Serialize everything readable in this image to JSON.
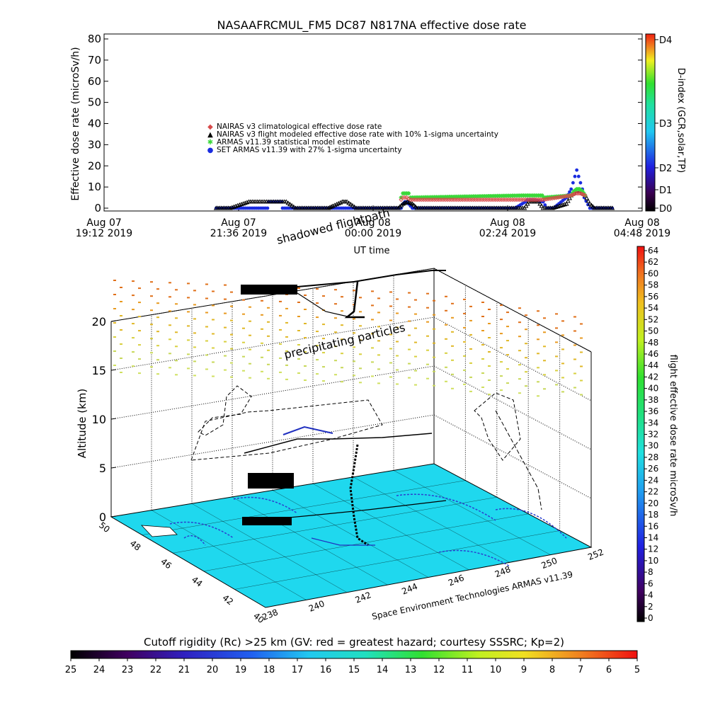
{
  "title": "NASAAFRCMUL_FM5 DC87 N817NA effective dose rate",
  "colors": {
    "nairas_clim": "#d84a4a",
    "nairas_flight": "#000000",
    "armas_stat": "#3ad83a",
    "set_armas": "#1a2ce0",
    "ground": "#1fd8ee",
    "track": "#000000"
  },
  "chart_data": [
    {
      "type": "line",
      "title": "NASAAFRCMUL_FM5 DC87 N817NA effective dose rate",
      "xlabel": "UT time",
      "ylabel": "Effective dose rate (microSv/h)",
      "ylim": [
        0,
        80
      ],
      "yticks": [
        "0",
        "10",
        "20",
        "30",
        "40",
        "50",
        "60",
        "70",
        "80"
      ],
      "xlim_minutes": [
        0,
        576
      ],
      "xticks": [
        {
          "line1": "Aug 07",
          "line2": "19:12 2019"
        },
        {
          "line1": "Aug 07",
          "line2": "21:36 2019"
        },
        {
          "line1": "Aug 08",
          "line2": "00:00 2019"
        },
        {
          "line1": "Aug 08",
          "line2": "02:24 2019"
        },
        {
          "line1": "Aug 08",
          "line2": "04:48 2019"
        }
      ],
      "legend": [
        {
          "symbol": "◆",
          "color_key": "nairas_clim",
          "label": "NAIRAS v3 climatological effective dose rate"
        },
        {
          "symbol": "▲",
          "color_key": "nairas_flight",
          "label": "NAIRAS v3 flight modeled effective dose rate with 10% 1-sigma uncertainty"
        },
        {
          "symbol": "✱",
          "color_key": "armas_stat",
          "label": "ARMAS v11.39 statistical model estimate"
        },
        {
          "symbol": "●",
          "color_key": "set_armas",
          "label": "SET ARMAS v11.39 with 27% 1-sigma uncertainty"
        }
      ],
      "series": [
        {
          "name": "SET ARMAS v11.39 with 27% 1-sigma uncertainty",
          "color_key": "set_armas",
          "x": [
            120,
            175,
            176,
            178,
            180,
            190,
            191,
            300,
            318,
            320,
            322,
            324,
            326,
            330,
            440,
            451,
            453,
            455,
            460,
            470,
            474,
            481,
            495,
            500,
            502,
            504,
            506,
            508,
            510,
            512,
            514,
            520,
            526,
            544
          ],
          "y": [
            0,
            0,
            3,
            3,
            3,
            3,
            0,
            0,
            0,
            2,
            3,
            3,
            2,
            0,
            0,
            3,
            4,
            4,
            4,
            3,
            0,
            0,
            5,
            9,
            12,
            15,
            18,
            15,
            12,
            9,
            5,
            0,
            0,
            0
          ]
        },
        {
          "name": "NAIRAS v3 flight modeled effective dose rate with 10% 1-sigma uncertainty",
          "color_key": "nairas_flight",
          "x": [
            120,
            135,
            145,
            155,
            170,
            195,
            205,
            240,
            245,
            255,
            260,
            270,
            300,
            315,
            320,
            325,
            330,
            335,
            440,
            450,
            455,
            460,
            465,
            470,
            480,
            495,
            500,
            505,
            510,
            515,
            520,
            525,
            544
          ],
          "y": [
            0,
            0,
            1.5,
            3,
            3,
            3,
            0,
            0,
            1,
            3,
            3,
            0,
            0,
            0,
            2,
            3,
            2,
            0,
            0,
            0,
            3,
            3,
            3,
            0,
            0,
            2,
            6,
            8,
            8,
            6,
            2,
            0,
            0
          ]
        },
        {
          "name": "ARMAS v11.39 statistical model estimate",
          "color_key": "armas_stat",
          "x": [
            318,
            320,
            322,
            324,
            326,
            328,
            451,
            453,
            455,
            457,
            459,
            461,
            463,
            465,
            467,
            469,
            471,
            500,
            503,
            506,
            509,
            512,
            515
          ],
          "y": [
            5,
            7,
            7,
            7,
            7,
            5,
            6,
            6,
            6,
            6,
            6,
            6,
            6,
            6,
            6,
            6,
            5,
            6,
            8,
            9,
            9,
            8,
            6
          ]
        },
        {
          "name": "NAIRAS v3 climatological effective dose rate",
          "color_key": "nairas_clim",
          "x": [
            318,
            320,
            324,
            328,
            451,
            455,
            460,
            465,
            470,
            500,
            505,
            510,
            515
          ],
          "y": [
            4,
            5,
            5,
            4,
            4,
            4,
            4,
            4,
            4,
            6,
            7,
            7,
            6
          ]
        }
      ]
    },
    {
      "type": "scatter",
      "title": "",
      "xlabel": "",
      "ylabel": "Altitude (km)",
      "zticks": [
        "0",
        "5",
        "10",
        "15",
        "20"
      ],
      "lat_ticks": [
        "50",
        "48",
        "46",
        "44",
        "42",
        "40"
      ],
      "lon_ticks": [
        "238",
        "240",
        "242",
        "244",
        "246",
        "248",
        "250",
        "252"
      ],
      "annotations": [
        "shadowed flightpath",
        "precipitating particles"
      ],
      "credit": "Space Environment Technologies ARMAS v11.39"
    },
    {
      "type": "heatmap",
      "title": "flight effective dose rate microSv/h",
      "ticks": [
        "0",
        "2",
        "4",
        "6",
        "8",
        "10",
        "12",
        "14",
        "16",
        "18",
        "20",
        "22",
        "24",
        "26",
        "28",
        "30",
        "32",
        "34",
        "36",
        "38",
        "40",
        "42",
        "44",
        "46",
        "48",
        "50",
        "52",
        "54",
        "56",
        "58",
        "60",
        "62",
        "64"
      ]
    }
  ],
  "dindex": {
    "label": "D-index (GCR,solar,TP)",
    "ticks": [
      "D0",
      "D1",
      "D2",
      "D3",
      "D4"
    ]
  },
  "cutoff": {
    "label": "Cutoff rigidity (Rc) >25 km (GV: red = greatest hazard; courtesy SSSRC; Kp=2)",
    "ticks": [
      "25",
      "24",
      "23",
      "22",
      "21",
      "20",
      "19",
      "18",
      "17",
      "16",
      "15",
      "14",
      "13",
      "12",
      "11",
      "10",
      "9",
      "8",
      "7",
      "6",
      "5"
    ]
  }
}
